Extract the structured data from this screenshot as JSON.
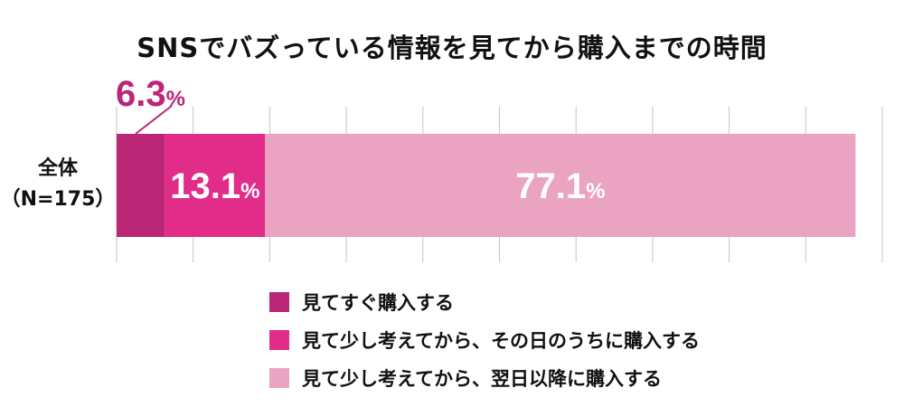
{
  "chart_data": {
    "type": "bar",
    "orientation": "horizontal-stacked",
    "title": "SNSでバズっている情報を見てから購入までの時間",
    "categories": [
      "全体\n（N=175）"
    ],
    "category_lines": [
      "全体",
      "（N=175）"
    ],
    "series": [
      {
        "name": "見てすぐ購入する",
        "values": [
          6.3
        ],
        "label": "6.3",
        "unit": "%",
        "color": "#bb2677"
      },
      {
        "name": "見て少し考えてから、その日のうちに購入する",
        "values": [
          13.1
        ],
        "label": "13.1",
        "unit": "%",
        "color": "#e22c8a"
      },
      {
        "name": "見て少し考えてから、翌日以降に購入する",
        "values": [
          77.1
        ],
        "label": "77.1",
        "unit": "%",
        "color": "#eba3c2"
      }
    ],
    "xlim": [
      0,
      100
    ],
    "grid": true,
    "legend_position": "bottom"
  }
}
